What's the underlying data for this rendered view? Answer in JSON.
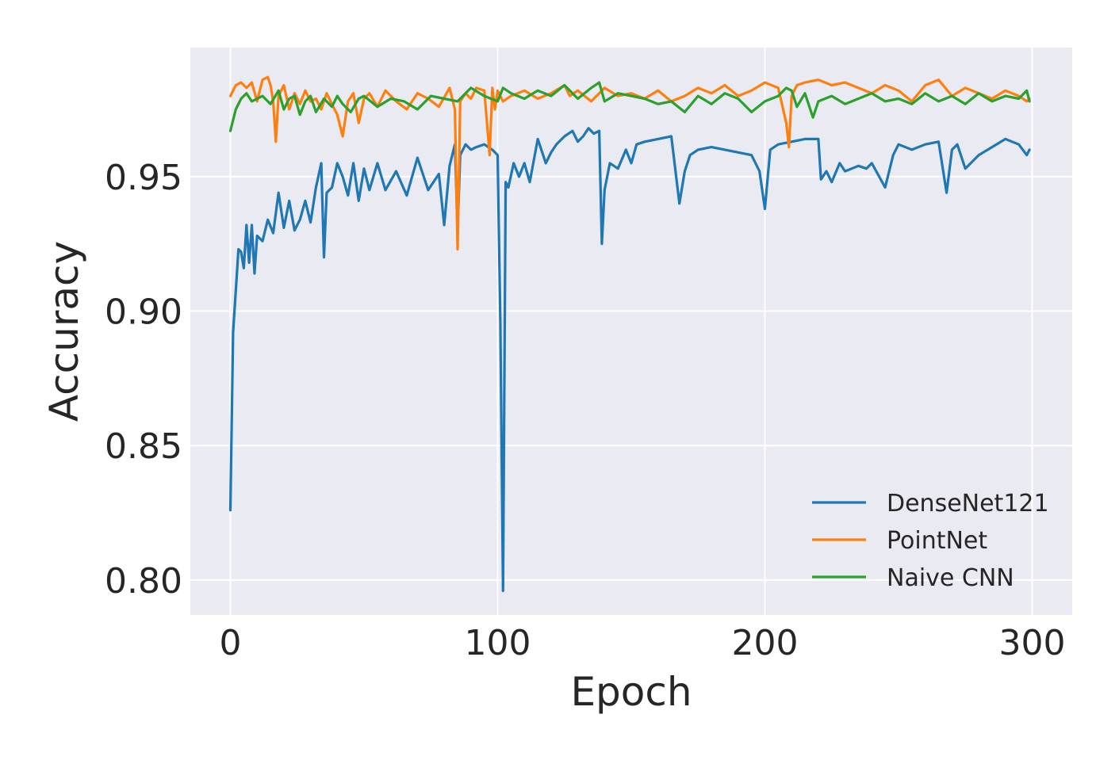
{
  "chart_data": {
    "type": "line",
    "xlabel": "Epoch",
    "ylabel": "Accuracy",
    "xlim": [
      -15,
      315
    ],
    "ylim": [
      0.787,
      0.998
    ],
    "xticks": [
      0,
      100,
      200,
      300
    ],
    "xtick_labels": [
      "0",
      "100",
      "200",
      "300"
    ],
    "yticks": [
      0.8,
      0.85,
      0.9,
      0.95
    ],
    "ytick_labels": [
      "0.80",
      "0.85",
      "0.90",
      "0.95"
    ],
    "grid": true,
    "legend_position": "lower-right",
    "series": [
      {
        "name": "DenseNet121",
        "color": "#1f77b4",
        "x": [
          0,
          1,
          3,
          4,
          5,
          6,
          7,
          8,
          9,
          10,
          12,
          14,
          16,
          18,
          20,
          22,
          24,
          26,
          28,
          30,
          32,
          34,
          35,
          36,
          38,
          40,
          42,
          44,
          46,
          48,
          50,
          52,
          55,
          58,
          62,
          66,
          70,
          74,
          78,
          80,
          82,
          84,
          85,
          86,
          88,
          90,
          92,
          95,
          98,
          100,
          101,
          102,
          103,
          104,
          106,
          108,
          110,
          112,
          115,
          118,
          120,
          122,
          125,
          128,
          130,
          132,
          134,
          136,
          138,
          139,
          140,
          142,
          145,
          148,
          150,
          152,
          155,
          160,
          165,
          168,
          170,
          172,
          175,
          180,
          185,
          190,
          195,
          198,
          200,
          202,
          205,
          210,
          215,
          220,
          221,
          223,
          225,
          228,
          230,
          235,
          238,
          240,
          245,
          248,
          250,
          255,
          260,
          265,
          268,
          270,
          272,
          275,
          280,
          285,
          290,
          295,
          298,
          299
        ],
        "y": [
          0.826,
          0.892,
          0.923,
          0.922,
          0.916,
          0.932,
          0.918,
          0.932,
          0.914,
          0.928,
          0.926,
          0.934,
          0.929,
          0.944,
          0.931,
          0.941,
          0.93,
          0.934,
          0.941,
          0.933,
          0.946,
          0.955,
          0.92,
          0.944,
          0.946,
          0.955,
          0.95,
          0.943,
          0.955,
          0.941,
          0.953,
          0.945,
          0.955,
          0.945,
          0.952,
          0.943,
          0.957,
          0.945,
          0.951,
          0.932,
          0.954,
          0.962,
          0.93,
          0.958,
          0.962,
          0.96,
          0.961,
          0.962,
          0.96,
          0.958,
          0.896,
          0.796,
          0.948,
          0.946,
          0.955,
          0.95,
          0.955,
          0.948,
          0.964,
          0.955,
          0.959,
          0.962,
          0.965,
          0.967,
          0.963,
          0.965,
          0.968,
          0.966,
          0.967,
          0.925,
          0.945,
          0.955,
          0.953,
          0.96,
          0.955,
          0.962,
          0.963,
          0.964,
          0.965,
          0.94,
          0.952,
          0.958,
          0.96,
          0.961,
          0.96,
          0.959,
          0.958,
          0.952,
          0.938,
          0.96,
          0.962,
          0.963,
          0.964,
          0.964,
          0.949,
          0.952,
          0.948,
          0.955,
          0.952,
          0.954,
          0.953,
          0.955,
          0.946,
          0.958,
          0.962,
          0.96,
          0.962,
          0.963,
          0.944,
          0.96,
          0.962,
          0.953,
          0.958,
          0.961,
          0.964,
          0.962,
          0.958,
          0.96
        ]
      },
      {
        "name": "PointNet",
        "color": "#ff7f0e",
        "x": [
          0,
          2,
          4,
          6,
          8,
          10,
          12,
          14,
          15,
          16,
          17,
          18,
          20,
          22,
          24,
          26,
          28,
          30,
          32,
          34,
          36,
          38,
          40,
          42,
          44,
          46,
          48,
          50,
          52,
          55,
          58,
          62,
          66,
          70,
          74,
          78,
          82,
          84,
          85,
          86,
          88,
          90,
          92,
          95,
          97,
          98,
          99,
          100,
          102,
          105,
          110,
          115,
          120,
          125,
          127,
          130,
          135,
          140,
          145,
          150,
          155,
          160,
          165,
          170,
          175,
          180,
          185,
          190,
          195,
          200,
          205,
          208,
          209,
          210,
          212,
          215,
          220,
          225,
          230,
          235,
          240,
          245,
          250,
          255,
          260,
          265,
          270,
          275,
          280,
          285,
          290,
          295,
          298,
          299
        ],
        "y": [
          0.98,
          0.984,
          0.985,
          0.983,
          0.985,
          0.978,
          0.986,
          0.987,
          0.984,
          0.978,
          0.963,
          0.98,
          0.984,
          0.975,
          0.981,
          0.977,
          0.982,
          0.978,
          0.979,
          0.975,
          0.981,
          0.977,
          0.973,
          0.965,
          0.978,
          0.981,
          0.97,
          0.979,
          0.981,
          0.976,
          0.982,
          0.978,
          0.975,
          0.981,
          0.979,
          0.976,
          0.983,
          0.975,
          0.923,
          0.978,
          0.981,
          0.979,
          0.983,
          0.982,
          0.958,
          0.983,
          0.975,
          0.982,
          0.978,
          0.98,
          0.982,
          0.979,
          0.981,
          0.984,
          0.98,
          0.982,
          0.978,
          0.983,
          0.98,
          0.981,
          0.979,
          0.982,
          0.978,
          0.98,
          0.983,
          0.981,
          0.984,
          0.98,
          0.982,
          0.985,
          0.983,
          0.97,
          0.961,
          0.98,
          0.984,
          0.985,
          0.986,
          0.984,
          0.985,
          0.983,
          0.981,
          0.984,
          0.982,
          0.978,
          0.984,
          0.986,
          0.98,
          0.983,
          0.981,
          0.979,
          0.982,
          0.98,
          0.978,
          0.979
        ]
      },
      {
        "name": "Naive CNN",
        "color": "#2ca02c",
        "x": [
          0,
          2,
          4,
          6,
          8,
          10,
          12,
          15,
          18,
          20,
          22,
          24,
          26,
          28,
          30,
          32,
          35,
          38,
          40,
          42,
          45,
          48,
          50,
          55,
          60,
          65,
          70,
          75,
          80,
          85,
          90,
          95,
          100,
          102,
          105,
          110,
          115,
          120,
          125,
          127,
          130,
          135,
          138,
          140,
          145,
          150,
          155,
          160,
          165,
          170,
          175,
          180,
          185,
          190,
          195,
          200,
          205,
          208,
          210,
          212,
          215,
          218,
          220,
          225,
          230,
          235,
          240,
          245,
          250,
          255,
          260,
          265,
          270,
          275,
          280,
          285,
          290,
          295,
          298,
          299
        ],
        "y": [
          0.967,
          0.975,
          0.979,
          0.981,
          0.978,
          0.979,
          0.98,
          0.977,
          0.982,
          0.975,
          0.979,
          0.98,
          0.973,
          0.978,
          0.98,
          0.974,
          0.979,
          0.976,
          0.98,
          0.977,
          0.974,
          0.979,
          0.98,
          0.976,
          0.979,
          0.978,
          0.975,
          0.98,
          0.979,
          0.978,
          0.983,
          0.98,
          0.978,
          0.983,
          0.981,
          0.979,
          0.982,
          0.98,
          0.984,
          0.982,
          0.979,
          0.983,
          0.985,
          0.978,
          0.981,
          0.98,
          0.979,
          0.977,
          0.978,
          0.974,
          0.98,
          0.977,
          0.981,
          0.979,
          0.974,
          0.978,
          0.98,
          0.983,
          0.982,
          0.976,
          0.981,
          0.972,
          0.978,
          0.98,
          0.977,
          0.979,
          0.981,
          0.978,
          0.979,
          0.977,
          0.981,
          0.978,
          0.98,
          0.977,
          0.981,
          0.978,
          0.98,
          0.979,
          0.982,
          0.978
        ]
      }
    ]
  }
}
